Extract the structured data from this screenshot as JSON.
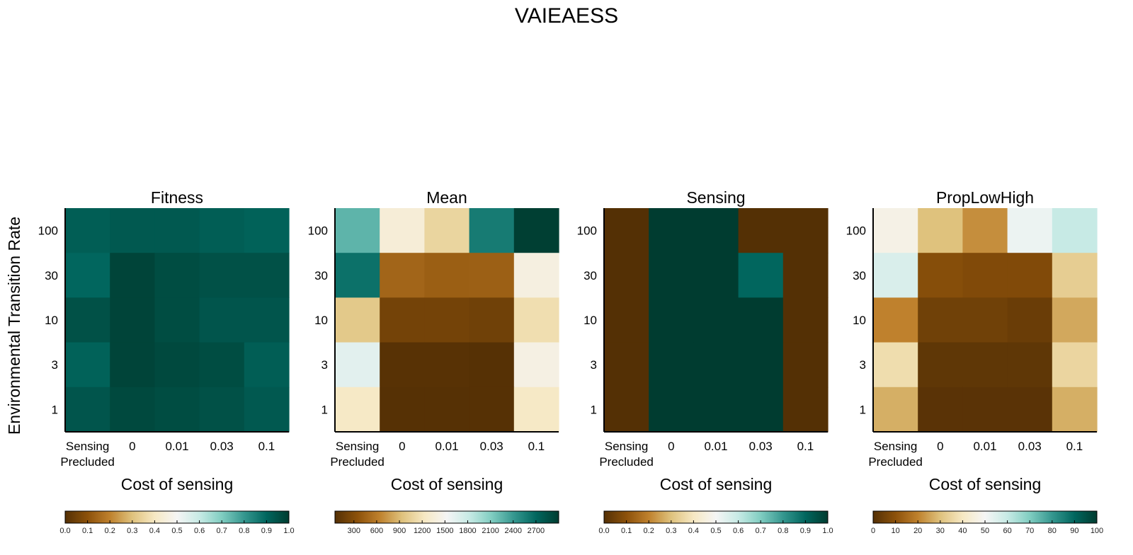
{
  "figure_title": "VAIEAESS",
  "colormap": [
    "#543005",
    "#8c510a",
    "#bf812d",
    "#dfc27d",
    "#f6e8c3",
    "#f5f5f5",
    "#c7eae5",
    "#80cdc1",
    "#35978f",
    "#01665e",
    "#003c30"
  ],
  "chart_data": [
    {
      "type": "heatmap",
      "title": "Fitness",
      "xlabel": "Cost of sensing",
      "ylabel": "Environmental Transition Rate",
      "x_categories": [
        "Sensing\nPrecluded",
        "0",
        "0.01",
        "0.03",
        "0.1"
      ],
      "y_categories": [
        "100",
        "30",
        "10",
        "3",
        "1"
      ],
      "values": [
        [
          0.92,
          0.93,
          0.93,
          0.92,
          0.91
        ],
        [
          0.9,
          0.98,
          0.96,
          0.95,
          0.95
        ],
        [
          0.95,
          0.98,
          0.96,
          0.94,
          0.94
        ],
        [
          0.91,
          0.98,
          0.97,
          0.96,
          0.92
        ],
        [
          0.94,
          0.97,
          0.96,
          0.95,
          0.93
        ]
      ],
      "vmin": 0.0,
      "vmax": 1.0,
      "colorbar_ticks": [
        "0.0",
        "0.1",
        "0.2",
        "0.3",
        "0.4",
        "0.5",
        "0.6",
        "0.7",
        "0.8",
        "0.9",
        "1.0"
      ]
    },
    {
      "type": "heatmap",
      "title": "Mean",
      "xlabel": "Cost of sensing",
      "ylabel": "",
      "x_categories": [
        "Sensing\nPrecluded",
        "0",
        "0.01",
        "0.03",
        "0.1"
      ],
      "y_categories": [
        "100",
        "30",
        "10",
        "3",
        "1"
      ],
      "values": [
        [
          2250,
          1350,
          1080,
          2580,
          2980
        ],
        [
          2640,
          470,
          430,
          440,
          1400
        ],
        [
          990,
          220,
          220,
          200,
          1150
        ],
        [
          1650,
          70,
          70,
          60,
          1420
        ],
        [
          1250,
          60,
          60,
          60,
          1250
        ]
      ],
      "vmin": 50,
      "vmax": 3000,
      "colorbar_ticks": [
        "300",
        "600",
        "900",
        "1200",
        "1500",
        "1800",
        "2100",
        "2400",
        "2700"
      ]
    },
    {
      "type": "heatmap",
      "title": "Sensing",
      "xlabel": "Cost of sensing",
      "ylabel": "",
      "x_categories": [
        "Sensing\nPrecluded",
        "0",
        "0.01",
        "0.03",
        "0.1"
      ],
      "y_categories": [
        "100",
        "30",
        "10",
        "3",
        "1"
      ],
      "values": [
        [
          0.0,
          1.0,
          1.0,
          0.0,
          0.0
        ],
        [
          0.0,
          1.0,
          1.0,
          0.9,
          0.0
        ],
        [
          0.0,
          1.0,
          1.0,
          1.0,
          0.0
        ],
        [
          0.0,
          1.0,
          1.0,
          1.0,
          0.0
        ],
        [
          0.0,
          1.0,
          1.0,
          1.0,
          0.0
        ]
      ],
      "vmin": 0.0,
      "vmax": 1.0,
      "colorbar_ticks": [
        "0.0",
        "0.1",
        "0.2",
        "0.3",
        "0.4",
        "0.5",
        "0.6",
        "0.7",
        "0.8",
        "0.9",
        "1.0"
      ]
    },
    {
      "type": "heatmap",
      "title": "PropLowHigh",
      "xlabel": "Cost of sensing",
      "ylabel": "",
      "x_categories": [
        "Sensing\nPrecluded",
        "0",
        "0.01",
        "0.03",
        "0.1"
      ],
      "y_categories": [
        "100",
        "30",
        "10",
        "3",
        "1"
      ],
      "values": [
        [
          47,
          30,
          22,
          52,
          60
        ],
        [
          56,
          9,
          8,
          8,
          33
        ],
        [
          20,
          5,
          5,
          4,
          26
        ],
        [
          37,
          2,
          2,
          2,
          35
        ],
        [
          27,
          1,
          1,
          1,
          27
        ]
      ],
      "vmin": 0,
      "vmax": 100,
      "colorbar_ticks": [
        "0",
        "10",
        "20",
        "30",
        "40",
        "50",
        "60",
        "70",
        "80",
        "90",
        "100"
      ]
    }
  ]
}
